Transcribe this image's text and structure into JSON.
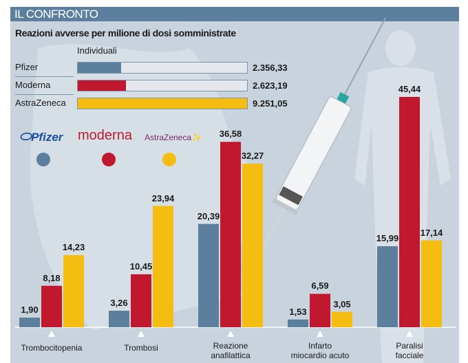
{
  "header": {
    "title": "IL CONFRONTO"
  },
  "subtitle": "Reazioni avverse per milione di dosi somministrate",
  "colors": {
    "pfizer": "#5b7f9c",
    "moderna": "#c0182f",
    "astrazeneca": "#f5bd12"
  },
  "individual": {
    "label": "Individuali",
    "rows": [
      {
        "name": "Pfizer",
        "value": 2356.33,
        "display": "2.356,33"
      },
      {
        "name": "Moderna",
        "value": 2623.19,
        "display": "2.623,19"
      },
      {
        "name": "AstraZeneca",
        "value": 9251.05,
        "display": "9.251,05"
      }
    ]
  },
  "logos": {
    "pfizer": "Pfizer",
    "moderna": "moderna",
    "astrazeneca": "AstraZeneca"
  },
  "chart_data": {
    "type": "bar",
    "title": "Reazioni avverse per milione di dosi somministrate",
    "categories": [
      "Trombocitopenia",
      "Trombosi",
      "Reazione anafilattica",
      "Infarto miocardio acuto",
      "Paralisi facciale"
    ],
    "category_lines": [
      [
        "Trombocitopenia"
      ],
      [
        "Trombosi"
      ],
      [
        "Reazione",
        "anafilattica"
      ],
      [
        "Infarto",
        "miocardio acuto"
      ],
      [
        "Paralisi",
        "facciale"
      ]
    ],
    "series": [
      {
        "name": "Pfizer",
        "values": [
          1.9,
          3.26,
          20.39,
          1.53,
          15.99
        ],
        "labels": [
          "1,90",
          "3,26",
          "20,39",
          "1,53",
          "15,99"
        ]
      },
      {
        "name": "Moderna",
        "values": [
          8.18,
          10.45,
          36.58,
          6.59,
          45.44
        ],
        "labels": [
          "8,18",
          "10,45",
          "36,58",
          "6,59",
          "45,44"
        ]
      },
      {
        "name": "AstraZeneca",
        "values": [
          14.23,
          23.94,
          32.27,
          3.05,
          17.14
        ],
        "labels": [
          "14,23",
          "23,94",
          "32,27",
          "3,05",
          "17,14"
        ]
      }
    ],
    "ylim": [
      0,
      46
    ]
  }
}
